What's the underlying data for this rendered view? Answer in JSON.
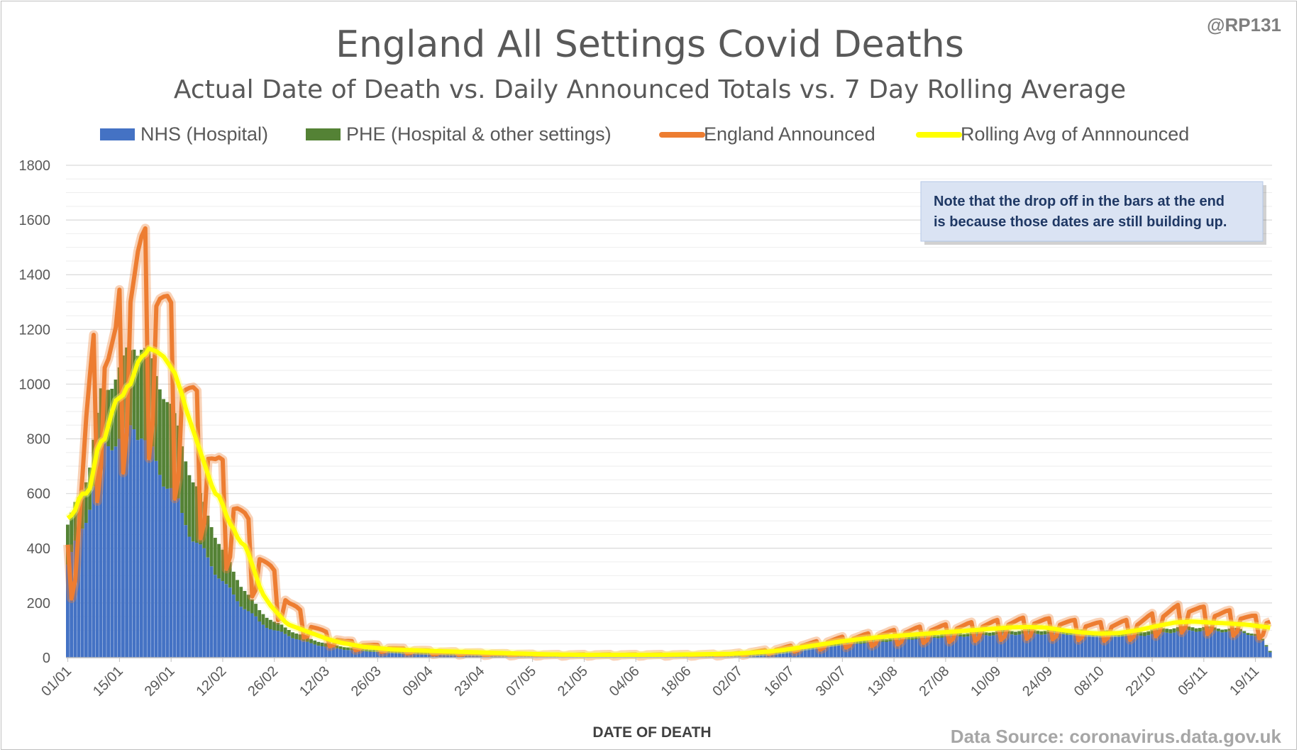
{
  "chart_data": {
    "type": "bar",
    "title": "England All Settings Covid Deaths",
    "subtitle": "Actual Date of Death vs. Daily Announced Totals vs. 7 Day Rolling Average",
    "handle": "@RP131",
    "xlabel": "DATE OF DEATH",
    "ylabel": "",
    "ylim": [
      0,
      1800
    ],
    "yticks": [
      0,
      200,
      400,
      600,
      800,
      1000,
      1200,
      1400,
      1600,
      1800
    ],
    "x_tick_labels": [
      "01/01",
      "15/01",
      "29/01",
      "12/02",
      "26/02",
      "12/03",
      "26/03",
      "09/04",
      "23/04",
      "07/05",
      "21/05",
      "04/06",
      "18/06",
      "02/07",
      "16/07",
      "30/07",
      "13/08",
      "27/08",
      "10/09",
      "24/09",
      "08/10",
      "22/10",
      "05/11",
      "19/11"
    ],
    "grid": true,
    "legend_position": "top",
    "note": "Note that the drop off in the bars at the end is because those dates are still building up.",
    "source": "Data Source: coronavirus.data.gov.uk",
    "series": [
      {
        "name": "NHS (Hospital)",
        "kind": "stacked-bar",
        "color": "#4472c4"
      },
      {
        "name": "PHE (Hospital & other settings)",
        "kind": "stacked-bar",
        "color": "#548235"
      },
      {
        "name": "England Announced",
        "kind": "line",
        "color": "#ed7d31"
      },
      {
        "name": "Rolling Avg of Annnounced",
        "kind": "line",
        "color": "#ffff00"
      }
    ],
    "nhs_key_points": [
      [
        0,
        340
      ],
      [
        3,
        440
      ],
      [
        6,
        560
      ],
      [
        9,
        760
      ],
      [
        12,
        800
      ],
      [
        14,
        800
      ],
      [
        16,
        820
      ],
      [
        18,
        850
      ],
      [
        20,
        830
      ],
      [
        22,
        760
      ],
      [
        25,
        680
      ],
      [
        28,
        620
      ],
      [
        31,
        520
      ],
      [
        34,
        440
      ],
      [
        37,
        380
      ],
      [
        40,
        320
      ],
      [
        43,
        260
      ],
      [
        46,
        210
      ],
      [
        49,
        170
      ],
      [
        52,
        130
      ],
      [
        56,
        100
      ],
      [
        60,
        80
      ],
      [
        65,
        55
      ],
      [
        70,
        40
      ],
      [
        75,
        30
      ],
      [
        80,
        24
      ],
      [
        90,
        17
      ],
      [
        100,
        12
      ],
      [
        110,
        9
      ],
      [
        120,
        7
      ],
      [
        130,
        6
      ],
      [
        140,
        5
      ],
      [
        150,
        5
      ],
      [
        160,
        5
      ],
      [
        170,
        5
      ],
      [
        180,
        6
      ],
      [
        190,
        12
      ],
      [
        195,
        20
      ],
      [
        200,
        32
      ],
      [
        210,
        48
      ],
      [
        220,
        58
      ],
      [
        230,
        70
      ],
      [
        240,
        78
      ],
      [
        250,
        84
      ],
      [
        260,
        88
      ],
      [
        270,
        88
      ],
      [
        280,
        82
      ],
      [
        290,
        80
      ],
      [
        297,
        92
      ],
      [
        305,
        100
      ],
      [
        312,
        98
      ],
      [
        318,
        95
      ],
      [
        322,
        80
      ],
      [
        324,
        60
      ],
      [
        326,
        20
      ]
    ],
    "phe_key_points": [
      [
        0,
        140
      ],
      [
        6,
        150
      ],
      [
        10,
        200
      ],
      [
        14,
        250
      ],
      [
        18,
        300
      ],
      [
        22,
        330
      ],
      [
        26,
        320
      ],
      [
        30,
        270
      ],
      [
        34,
        210
      ],
      [
        38,
        160
      ],
      [
        42,
        110
      ],
      [
        46,
        80
      ],
      [
        50,
        50
      ],
      [
        56,
        30
      ],
      [
        62,
        20
      ],
      [
        70,
        12
      ],
      [
        80,
        8
      ],
      [
        100,
        5
      ],
      [
        150,
        4
      ],
      [
        200,
        10
      ],
      [
        250,
        12
      ],
      [
        300,
        15
      ],
      [
        326,
        5
      ]
    ],
    "announced_key_points": [
      [
        0,
        350
      ],
      [
        3,
        480
      ],
      [
        5,
        800
      ],
      [
        7,
        1000
      ],
      [
        9,
        1080
      ],
      [
        11,
        1040
      ],
      [
        13,
        1050
      ],
      [
        15,
        1230
      ],
      [
        17,
        1300
      ],
      [
        19,
        1350
      ],
      [
        21,
        1330
      ],
      [
        23,
        1320
      ],
      [
        25,
        1250
      ],
      [
        28,
        1100
      ],
      [
        31,
        970
      ],
      [
        34,
        860
      ],
      [
        37,
        760
      ],
      [
        40,
        660
      ],
      [
        43,
        590
      ],
      [
        46,
        520
      ],
      [
        49,
        430
      ],
      [
        52,
        360
      ],
      [
        56,
        270
      ],
      [
        60,
        190
      ],
      [
        65,
        120
      ],
      [
        70,
        80
      ],
      [
        75,
        55
      ],
      [
        80,
        45
      ],
      [
        90,
        30
      ],
      [
        100,
        20
      ],
      [
        110,
        16
      ],
      [
        120,
        12
      ],
      [
        130,
        10
      ],
      [
        140,
        10
      ],
      [
        150,
        10
      ],
      [
        160,
        10
      ],
      [
        170,
        10
      ],
      [
        180,
        12
      ],
      [
        190,
        25
      ],
      [
        200,
        45
      ],
      [
        210,
        65
      ],
      [
        220,
        80
      ],
      [
        230,
        95
      ],
      [
        240,
        105
      ],
      [
        250,
        115
      ],
      [
        260,
        125
      ],
      [
        270,
        120
      ],
      [
        280,
        110
      ],
      [
        290,
        120
      ],
      [
        297,
        150
      ],
      [
        303,
        170
      ],
      [
        307,
        160
      ],
      [
        312,
        150
      ],
      [
        317,
        145
      ],
      [
        322,
        130
      ],
      [
        326,
        125
      ]
    ],
    "rolling_avg_key_points": [
      [
        0,
        510
      ],
      [
        1,
        520
      ],
      [
        2,
        540
      ],
      [
        3,
        580
      ],
      [
        4,
        600
      ],
      [
        5,
        600
      ],
      [
        6,
        620
      ],
      [
        7,
        690
      ],
      [
        8,
        760
      ],
      [
        9,
        790
      ],
      [
        10,
        800
      ],
      [
        11,
        850
      ],
      [
        12,
        900
      ],
      [
        13,
        940
      ],
      [
        14,
        950
      ],
      [
        15,
        960
      ],
      [
        16,
        990
      ],
      [
        17,
        1000
      ],
      [
        18,
        1040
      ],
      [
        19,
        1080
      ],
      [
        20,
        1100
      ],
      [
        21,
        1110
      ],
      [
        22,
        1130
      ],
      [
        23,
        1125
      ],
      [
        24,
        1120
      ],
      [
        25,
        1110
      ],
      [
        26,
        1100
      ],
      [
        27,
        1080
      ],
      [
        28,
        1060
      ],
      [
        29,
        1040
      ],
      [
        30,
        1000
      ],
      [
        31,
        960
      ],
      [
        32,
        910
      ],
      [
        33,
        870
      ],
      [
        34,
        830
      ],
      [
        35,
        790
      ],
      [
        36,
        750
      ],
      [
        37,
        710
      ],
      [
        38,
        670
      ],
      [
        39,
        630
      ],
      [
        40,
        600
      ],
      [
        41,
        590
      ],
      [
        42,
        560
      ],
      [
        43,
        520
      ],
      [
        44,
        490
      ],
      [
        45,
        470
      ],
      [
        46,
        440
      ],
      [
        47,
        420
      ],
      [
        48,
        410
      ],
      [
        49,
        380
      ],
      [
        50,
        340
      ],
      [
        51,
        300
      ],
      [
        52,
        260
      ],
      [
        53,
        230
      ],
      [
        54,
        210
      ],
      [
        55,
        190
      ],
      [
        56,
        175
      ],
      [
        57,
        160
      ],
      [
        58,
        145
      ],
      [
        59,
        130
      ],
      [
        60,
        120
      ],
      [
        61,
        115
      ],
      [
        62,
        110
      ],
      [
        63,
        105
      ],
      [
        64,
        100
      ],
      [
        65,
        95
      ],
      [
        66,
        90
      ],
      [
        67,
        85
      ],
      [
        68,
        80
      ],
      [
        69,
        75
      ],
      [
        70,
        70
      ],
      [
        72,
        62
      ],
      [
        74,
        55
      ],
      [
        76,
        50
      ],
      [
        78,
        45
      ],
      [
        80,
        40
      ],
      [
        84,
        35
      ],
      [
        88,
        30
      ],
      [
        92,
        28
      ],
      [
        96,
        26
      ],
      [
        100,
        24
      ],
      [
        105,
        22
      ],
      [
        110,
        20
      ],
      [
        115,
        18
      ],
      [
        120,
        16
      ],
      [
        125,
        14
      ],
      [
        130,
        12
      ],
      [
        135,
        11
      ],
      [
        140,
        10
      ],
      [
        145,
        10
      ],
      [
        150,
        10
      ],
      [
        155,
        10
      ],
      [
        160,
        10
      ],
      [
        165,
        11
      ],
      [
        170,
        12
      ],
      [
        175,
        13
      ],
      [
        180,
        14
      ],
      [
        185,
        18
      ],
      [
        190,
        22
      ],
      [
        195,
        30
      ],
      [
        200,
        40
      ],
      [
        205,
        50
      ],
      [
        210,
        60
      ],
      [
        215,
        68
      ],
      [
        220,
        75
      ],
      [
        225,
        80
      ],
      [
        230,
        85
      ],
      [
        235,
        90
      ],
      [
        240,
        95
      ],
      [
        245,
        100
      ],
      [
        250,
        105
      ],
      [
        255,
        110
      ],
      [
        260,
        112
      ],
      [
        265,
        110
      ],
      [
        270,
        100
      ],
      [
        275,
        92
      ],
      [
        280,
        88
      ],
      [
        285,
        90
      ],
      [
        290,
        100
      ],
      [
        295,
        115
      ],
      [
        300,
        128
      ],
      [
        305,
        132
      ],
      [
        310,
        128
      ],
      [
        315,
        125
      ],
      [
        320,
        120
      ],
      [
        326,
        110
      ]
    ]
  }
}
